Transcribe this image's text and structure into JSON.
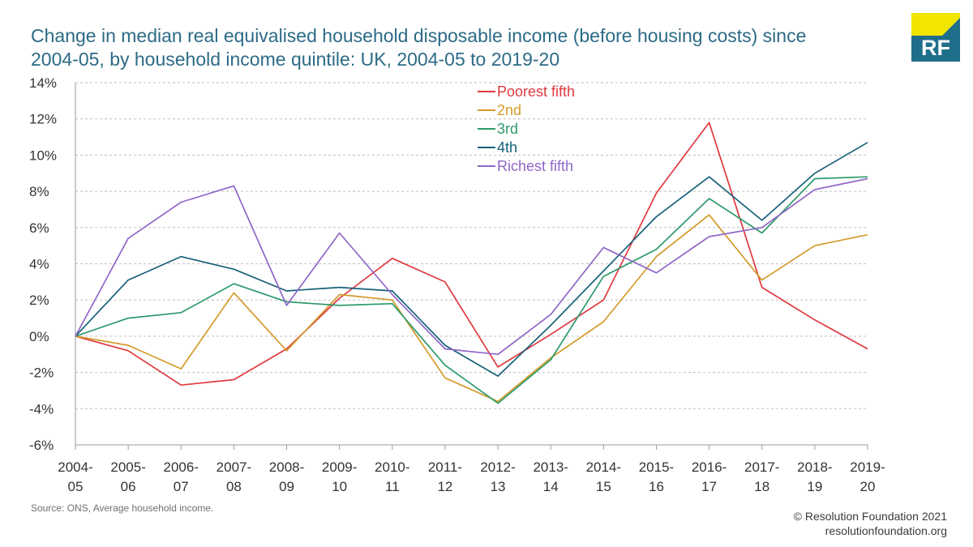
{
  "title_lines": [
    "Change in median real equivalised household disposable income (before housing costs) since",
    "2004-05, by household income quintile: UK, 2004-05 to 2019-20"
  ],
  "logo_text": "RF",
  "source": "Source: ONS, Average household income.",
  "copyright": [
    "© Resolution Foundation 2021",
    "resolutionfoundation.org"
  ],
  "colors": {
    "title": "#2c6b86",
    "logo_bg": "#1f6f8b",
    "logo_accent": "#f2e500",
    "grid": "#bfbfbf"
  },
  "chart_data": {
    "type": "line",
    "categories": [
      [
        "2004-",
        "05"
      ],
      [
        "2005-",
        "06"
      ],
      [
        "2006-",
        "07"
      ],
      [
        "2007-",
        "08"
      ],
      [
        "2008-",
        "09"
      ],
      [
        "2009-",
        "10"
      ],
      [
        "2010-",
        "11"
      ],
      [
        "2011-",
        "12"
      ],
      [
        "2012-",
        "13"
      ],
      [
        "2013-",
        "14"
      ],
      [
        "2014-",
        "15"
      ],
      [
        "2015-",
        "16"
      ],
      [
        "2016-",
        "17"
      ],
      [
        "2017-",
        "18"
      ],
      [
        "2018-",
        "19"
      ],
      [
        "2019-",
        "20"
      ]
    ],
    "yticks": [
      -6,
      -4,
      -2,
      0,
      2,
      4,
      6,
      8,
      10,
      12,
      14
    ],
    "ytick_labels": [
      "-6%",
      "-4%",
      "-2%",
      "0%",
      "2%",
      "4%",
      "6%",
      "8%",
      "10%",
      "12%",
      "14%"
    ],
    "ylim": [
      -6,
      14
    ],
    "grid": true,
    "legend_position": "top-center",
    "series": [
      {
        "name": "Poorest fifth",
        "color": "#e0393e",
        "values": [
          0,
          -0.8,
          -2.7,
          -2.4,
          -0.7,
          2.1,
          4.3,
          3.0,
          -1.7,
          0.1,
          2.0,
          7.9,
          11.8,
          2.7,
          0.9,
          -0.7
        ]
      },
      {
        "name": "2nd",
        "color": "#d49a2a",
        "values": [
          0,
          -0.5,
          -1.8,
          2.4,
          -0.8,
          2.3,
          2.0,
          -2.3,
          -3.6,
          -1.2,
          0.8,
          4.4,
          6.7,
          3.1,
          5.0,
          5.6
        ]
      },
      {
        "name": "3rd",
        "color": "#2c9a6a",
        "values": [
          0,
          1.0,
          1.3,
          2.9,
          1.9,
          1.7,
          1.8,
          -1.6,
          -3.7,
          -1.3,
          3.3,
          4.8,
          7.6,
          5.7,
          8.7,
          8.8
        ]
      },
      {
        "name": "4th",
        "color": "#17617a",
        "values": [
          0,
          3.1,
          4.4,
          3.7,
          2.5,
          2.7,
          2.5,
          -0.5,
          -2.2,
          0.6,
          3.6,
          6.6,
          8.8,
          6.4,
          9.0,
          10.7
        ]
      },
      {
        "name": "Richest fifth",
        "color": "#9066c8",
        "values": [
          0,
          5.4,
          7.4,
          8.3,
          1.7,
          5.7,
          2.3,
          -0.7,
          -1.0,
          1.2,
          4.9,
          3.5,
          5.5,
          6.0,
          8.1,
          8.7
        ]
      }
    ]
  }
}
